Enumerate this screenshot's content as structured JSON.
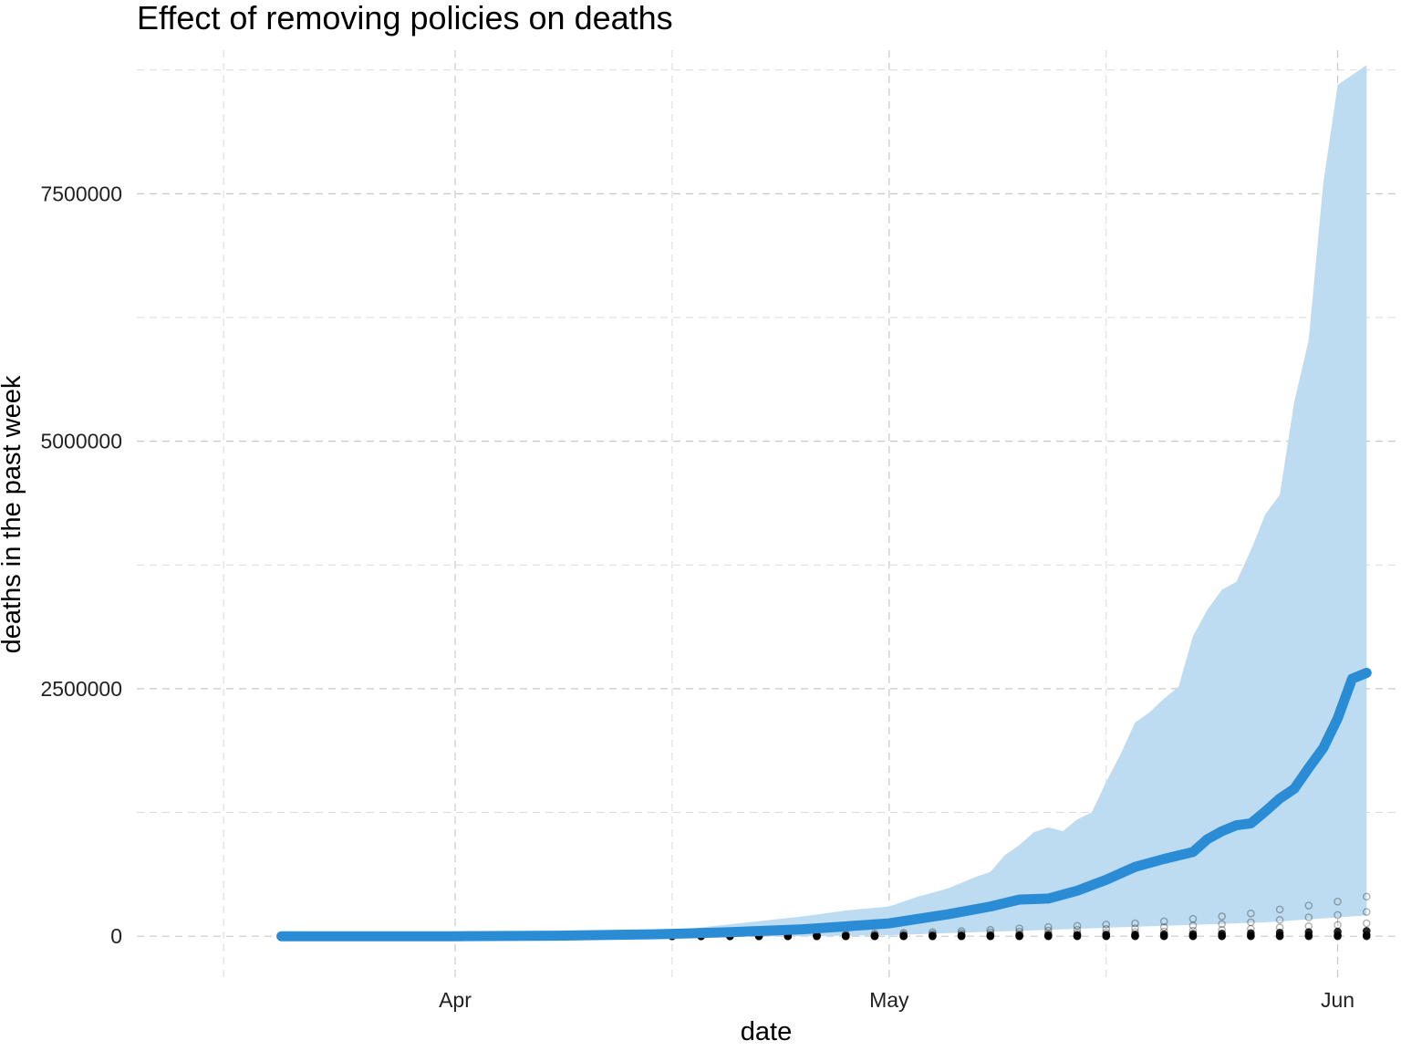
{
  "chart_data": {
    "type": "line",
    "title": "Effect of removing policies on deaths",
    "xlabel": "date",
    "ylabel": "deaths in the past week",
    "x_axis": {
      "type": "date",
      "range": [
        "2020-03-10",
        "2020-06-05"
      ],
      "ticks": [
        {
          "date": "2020-04-01",
          "label": "Apr"
        },
        {
          "date": "2020-05-01",
          "label": "May"
        },
        {
          "date": "2020-06-01",
          "label": "Jun"
        }
      ],
      "minor_ticks": [
        "2020-03-16",
        "2020-04-16",
        "2020-05-16"
      ]
    },
    "y_axis": {
      "range": [
        -450000,
        8950000
      ],
      "ticks": [
        0,
        2500000,
        5000000,
        7500000
      ],
      "tick_labels": [
        "0",
        "2500000",
        "5000000",
        "7500000"
      ],
      "minor_ticks": [
        1250000,
        3750000,
        6250000,
        8750000
      ]
    },
    "grid": true,
    "legend": "none",
    "colors": {
      "line": "#2b8cd6",
      "band": "#bddcf2",
      "points": "#000000"
    },
    "series": [
      {
        "kind": "line",
        "x": [
          "2020-03-20",
          "2020-04-01",
          "2020-04-08",
          "2020-04-15",
          "2020-04-20",
          "2020-04-25",
          "2020-05-01",
          "2020-05-05",
          "2020-05-08",
          "2020-05-10",
          "2020-05-12",
          "2020-05-14",
          "2020-05-16",
          "2020-05-18",
          "2020-05-20",
          "2020-05-22",
          "2020-05-23",
          "2020-05-24",
          "2020-05-25",
          "2020-05-26",
          "2020-05-27",
          "2020-05-28",
          "2020-05-29",
          "2020-05-30",
          "2020-05-31",
          "2020-06-01",
          "2020-06-02",
          "2020-06-03"
        ],
        "y": [
          0,
          0,
          5000,
          20000,
          40000,
          70000,
          130000,
          220000,
          300000,
          370000,
          380000,
          460000,
          570000,
          700000,
          780000,
          850000,
          980000,
          1060000,
          1120000,
          1140000,
          1260000,
          1390000,
          1490000,
          1700000,
          1900000,
          2200000,
          2600000,
          2660000
        ]
      },
      {
        "kind": "band",
        "x": [
          "2020-03-20",
          "2020-04-15",
          "2020-04-20",
          "2020-04-25",
          "2020-04-28",
          "2020-05-01",
          "2020-05-03",
          "2020-05-05",
          "2020-05-07",
          "2020-05-08",
          "2020-05-09",
          "2020-05-10",
          "2020-05-11",
          "2020-05-12",
          "2020-05-13",
          "2020-05-14",
          "2020-05-15",
          "2020-05-16",
          "2020-05-17",
          "2020-05-18",
          "2020-05-19",
          "2020-05-20",
          "2020-05-21",
          "2020-05-22",
          "2020-05-23",
          "2020-05-24",
          "2020-05-25",
          "2020-05-26",
          "2020-05-27",
          "2020-05-28",
          "2020-05-29",
          "2020-05-30",
          "2020-05-31",
          "2020-06-01",
          "2020-06-02",
          "2020-06-03"
        ],
        "lower": [
          0,
          0,
          0,
          0,
          5000,
          10000,
          20000,
          30000,
          40000,
          45000,
          50000,
          55000,
          60000,
          65000,
          70000,
          75000,
          80000,
          85000,
          90000,
          95000,
          100000,
          105000,
          110000,
          115000,
          120000,
          125000,
          130000,
          135000,
          140000,
          150000,
          160000,
          170000,
          180000,
          190000,
          200000,
          210000
        ],
        "upper": [
          0,
          40000,
          120000,
          200000,
          260000,
          300000,
          400000,
          480000,
          600000,
          650000,
          820000,
          920000,
          1050000,
          1100000,
          1060000,
          1180000,
          1250000,
          1560000,
          1840000,
          2160000,
          2260000,
          2400000,
          2520000,
          3030000,
          3300000,
          3500000,
          3580000,
          3900000,
          4260000,
          4460000,
          5400000,
          6020000,
          7600000,
          8600000,
          8700000,
          8800000
        ]
      },
      {
        "kind": "points",
        "x": [
          "2020-04-16",
          "2020-04-18",
          "2020-04-20",
          "2020-04-22",
          "2020-04-24",
          "2020-04-26",
          "2020-04-28",
          "2020-04-30",
          "2020-05-02",
          "2020-05-04",
          "2020-05-06",
          "2020-05-08",
          "2020-05-10",
          "2020-05-12",
          "2020-05-14",
          "2020-05-16",
          "2020-05-18",
          "2020-05-20",
          "2020-05-22",
          "2020-05-24",
          "2020-05-26",
          "2020-05-28",
          "2020-05-30",
          "2020-06-01",
          "2020-06-03"
        ],
        "y_max": [
          5000,
          6000,
          8000,
          10000,
          14000,
          18000,
          22000,
          28000,
          34000,
          42000,
          52000,
          64000,
          78000,
          92000,
          105000,
          118000,
          130000,
          150000,
          175000,
          200000,
          230000,
          270000,
          310000,
          350000,
          400000
        ]
      }
    ]
  }
}
